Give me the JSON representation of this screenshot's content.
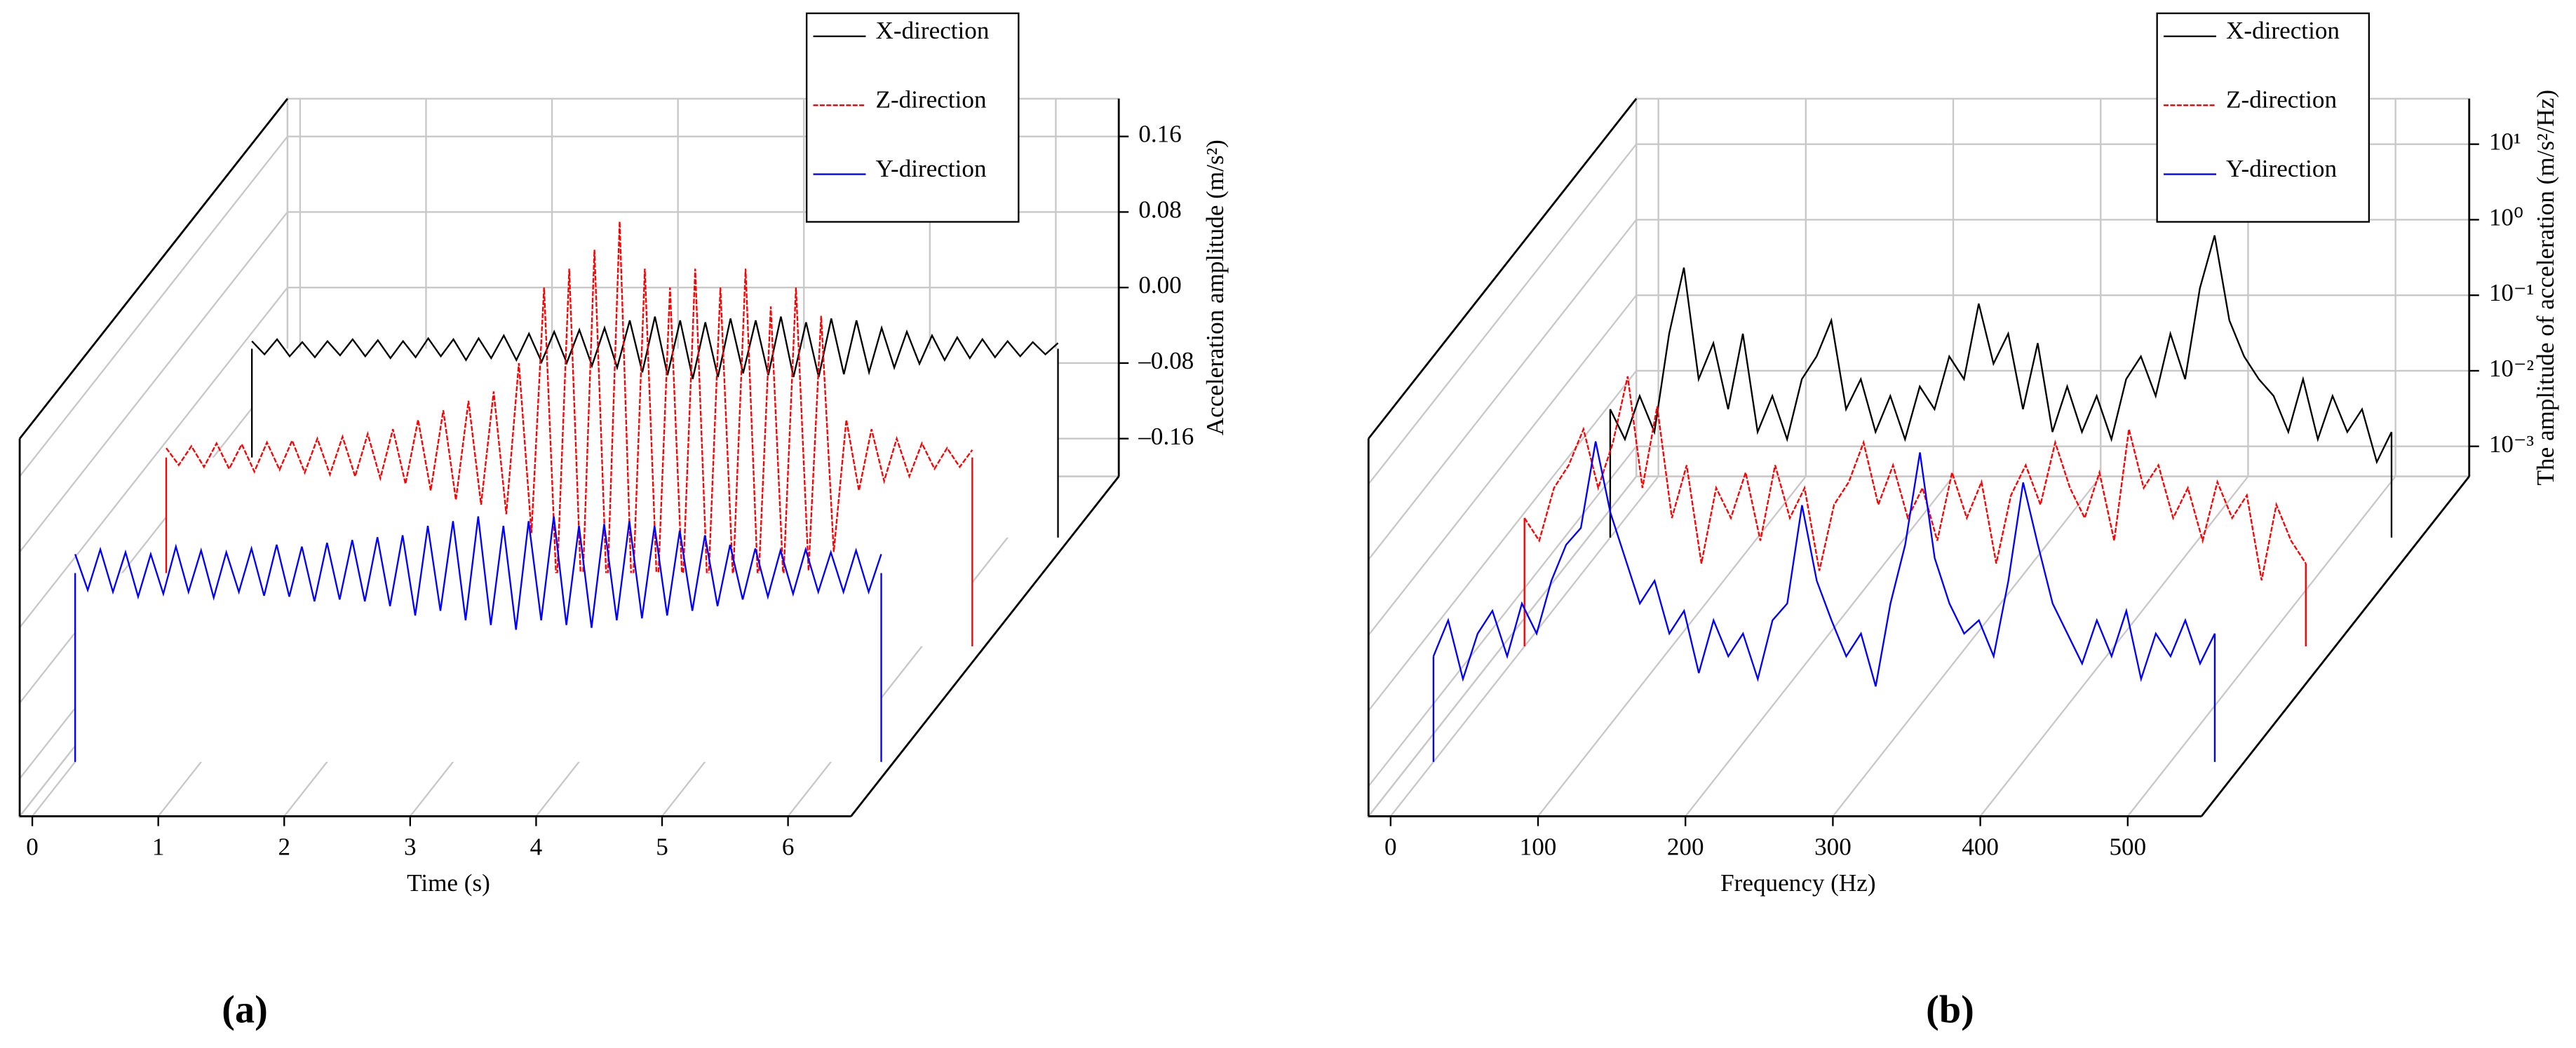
{
  "chart_data": [
    {
      "type": "line",
      "panel_label": "(a)",
      "xlabel": "Time (s)",
      "ylabel": "Acceleration amplitude (m/s²)",
      "xlim": [
        -0.1,
        6.5
      ],
      "xticks": [
        0,
        1,
        2,
        3,
        4,
        5,
        6
      ],
      "ylim": [
        -0.2,
        0.2
      ],
      "yticks": [
        {
          "value": -0.16,
          "label": "–0.16"
        },
        {
          "value": -0.08,
          "label": "–0.08"
        },
        {
          "value": 0,
          "label": "0.00"
        },
        0.08,
        0.16
      ],
      "grid": true,
      "legend": "upper right",
      "log_y": false,
      "x": [
        0,
        0.1,
        0.2,
        0.3,
        0.4,
        0.5,
        0.6,
        0.7,
        0.8,
        0.9,
        1,
        1.1,
        1.2,
        1.3,
        1.4,
        1.5,
        1.6,
        1.7,
        1.8,
        1.9,
        2,
        2.1,
        2.2,
        2.3,
        2.4,
        2.5,
        2.6,
        2.7,
        2.8,
        2.9,
        3,
        3.1,
        3.2,
        3.3,
        3.4,
        3.5,
        3.6,
        3.7,
        3.8,
        3.9,
        4,
        4.1,
        4.2,
        4.3,
        4.4,
        4.5,
        4.6,
        4.7,
        4.8,
        4.9,
        5,
        5.1,
        5.2,
        5.3,
        5.4,
        5.5,
        5.6,
        5.7,
        5.8,
        5.9,
        6,
        6.1,
        6.2,
        6.3,
        6.4
      ],
      "series": [
        {
          "name": "X-direction",
          "color": "#000000",
          "values": [
            0.008,
            -0.006,
            0.01,
            -0.008,
            0.007,
            -0.009,
            0.008,
            -0.007,
            0.01,
            -0.008,
            0.009,
            -0.01,
            0.008,
            -0.009,
            0.011,
            -0.008,
            0.01,
            -0.012,
            0.011,
            -0.01,
            0.014,
            -0.012,
            0.016,
            -0.014,
            0.018,
            -0.015,
            0.02,
            -0.018,
            0.022,
            -0.02,
            0.03,
            -0.025,
            0.034,
            -0.028,
            0.03,
            -0.032,
            0.028,
            -0.03,
            0.032,
            -0.026,
            0.03,
            -0.028,
            0.034,
            -0.03,
            0.028,
            -0.03,
            0.032,
            -0.027,
            0.03,
            -0.025,
            0.022,
            -0.02,
            0.018,
            -0.016,
            0.014,
            -0.012,
            0.012,
            -0.01,
            0.01,
            -0.009,
            0.008,
            -0.008,
            0.007,
            -0.006,
            0.006
          ]
        },
        {
          "name": "Z-direction",
          "color": "#ff0000",
          "values": [
            0.01,
            -0.008,
            0.012,
            -0.01,
            0.015,
            -0.012,
            0.014,
            -0.015,
            0.016,
            -0.013,
            0.018,
            -0.016,
            0.02,
            -0.018,
            0.022,
            -0.02,
            0.025,
            -0.022,
            0.03,
            -0.028,
            0.04,
            -0.035,
            0.05,
            -0.045,
            0.06,
            -0.05,
            0.07,
            -0.06,
            0.1,
            -0.08,
            0.18,
            -0.14,
            0.2,
            -0.16,
            0.22,
            -0.15,
            0.25,
            -0.16,
            0.2,
            -0.15,
            0.18,
            -0.14,
            0.2,
            -0.15,
            0.18,
            -0.13,
            0.2,
            -0.14,
            0.16,
            -0.13,
            0.18,
            -0.12,
            0.15,
            -0.1,
            0.04,
            -0.035,
            0.03,
            -0.025,
            0.02,
            -0.02,
            0.015,
            -0.012,
            0.01,
            -0.01,
            0.008
          ]
        },
        {
          "name": "Y-direction",
          "color": "#0000ff",
          "values": [
            0.02,
            -0.018,
            0.025,
            -0.02,
            0.022,
            -0.025,
            0.02,
            -0.022,
            0.028,
            -0.02,
            0.024,
            -0.026,
            0.022,
            -0.02,
            0.026,
            -0.024,
            0.03,
            -0.025,
            0.028,
            -0.03,
            0.032,
            -0.028,
            0.035,
            -0.03,
            0.038,
            -0.035,
            0.04,
            -0.045,
            0.05,
            -0.04,
            0.055,
            -0.05,
            0.06,
            -0.055,
            0.05,
            -0.06,
            0.055,
            -0.05,
            0.06,
            -0.055,
            0.05,
            -0.058,
            0.052,
            -0.05,
            0.055,
            -0.048,
            0.05,
            -0.045,
            0.045,
            -0.04,
            0.04,
            -0.035,
            0.03,
            -0.028,
            0.026,
            -0.025,
            0.024,
            -0.022,
            0.025,
            -0.02,
            0.022,
            -0.02,
            0.024,
            -0.02,
            0.02
          ]
        }
      ]
    },
    {
      "type": "line",
      "panel_label": "(b)",
      "xlabel": "Frequency (Hz)",
      "ylabel": "The amplitude of acceleration (m/s²/Hz)",
      "xlim": [
        -15,
        550
      ],
      "xticks": [
        0,
        100,
        200,
        300,
        400,
        500
      ],
      "ylim": [
        0.0004,
        40
      ],
      "yticks": [
        {
          "value": 0.001,
          "label": "10⁻³"
        },
        {
          "value": 0.01,
          "label": "10⁻²"
        },
        {
          "value": 0.1,
          "label": "10⁻¹"
        },
        {
          "value": 1,
          "label": "10⁰"
        },
        {
          "value": 10,
          "label": "10¹"
        }
      ],
      "grid": true,
      "legend": "upper right",
      "log_y": true,
      "x": [
        0,
        10,
        20,
        30,
        40,
        50,
        60,
        70,
        80,
        90,
        100,
        110,
        120,
        130,
        140,
        150,
        160,
        170,
        180,
        190,
        200,
        210,
        220,
        230,
        240,
        250,
        260,
        270,
        280,
        290,
        300,
        310,
        320,
        330,
        340,
        350,
        360,
        370,
        380,
        390,
        400,
        410,
        420,
        430,
        440,
        450,
        460,
        470,
        480,
        490,
        500,
        510,
        520,
        530
      ],
      "series": [
        {
          "name": "X-direction",
          "color": "#000000",
          "values": [
            0.02,
            0.008,
            0.03,
            0.01,
            0.2,
            1.5,
            0.05,
            0.15,
            0.02,
            0.2,
            0.01,
            0.03,
            0.008,
            0.05,
            0.1,
            0.3,
            0.02,
            0.05,
            0.01,
            0.03,
            0.008,
            0.04,
            0.02,
            0.1,
            0.05,
            0.5,
            0.08,
            0.2,
            0.02,
            0.15,
            0.01,
            0.04,
            0.01,
            0.03,
            0.008,
            0.05,
            0.1,
            0.03,
            0.2,
            0.05,
            0.8,
            4,
            0.3,
            0.1,
            0.05,
            0.03,
            0.01,
            0.05,
            0.008,
            0.03,
            0.01,
            0.02,
            0.004,
            0.01
          ]
        },
        {
          "name": "Z-direction",
          "color": "#ff0000",
          "values": [
            0.02,
            0.01,
            0.05,
            0.1,
            0.3,
            0.05,
            0.2,
            1.5,
            0.05,
            0.6,
            0.02,
            0.1,
            0.005,
            0.05,
            0.02,
            0.08,
            0.01,
            0.1,
            0.02,
            0.05,
            0.004,
            0.03,
            0.06,
            0.2,
            0.03,
            0.1,
            0.02,
            0.05,
            0.01,
            0.08,
            0.02,
            0.06,
            0.005,
            0.04,
            0.1,
            0.03,
            0.2,
            0.05,
            0.02,
            0.08,
            0.01,
            0.3,
            0.05,
            0.1,
            0.02,
            0.05,
            0.01,
            0.06,
            0.02,
            0.04,
            0.003,
            0.03,
            0.01,
            0.005
          ]
        },
        {
          "name": "Y-direction",
          "color": "#0000ff",
          "values": [
            0.01,
            0.03,
            0.005,
            0.02,
            0.04,
            0.01,
            0.05,
            0.02,
            0.1,
            0.3,
            0.5,
            7,
            0.8,
            0.2,
            0.05,
            0.1,
            0.02,
            0.04,
            0.006,
            0.03,
            0.01,
            0.02,
            0.005,
            0.03,
            0.05,
            1,
            0.1,
            0.03,
            0.01,
            0.02,
            0.004,
            0.05,
            0.3,
            5,
            0.2,
            0.05,
            0.02,
            0.03,
            0.01,
            0.1,
            2,
            0.3,
            0.05,
            0.02,
            0.008,
            0.03,
            0.01,
            0.04,
            0.005,
            0.02,
            0.01,
            0.03,
            0.008,
            0.02
          ]
        }
      ]
    }
  ]
}
